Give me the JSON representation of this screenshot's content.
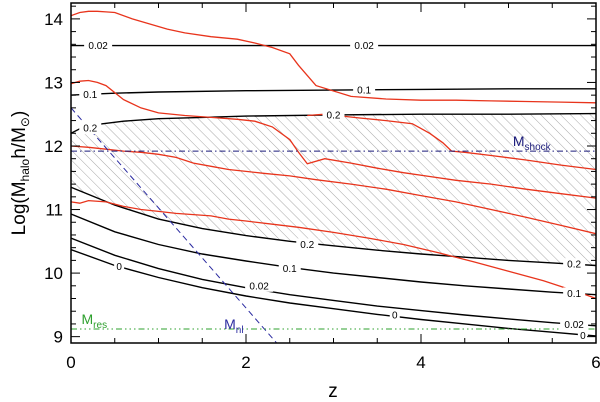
{
  "chart_data": {
    "type": "line",
    "x_axis": {
      "label": "z",
      "range": [
        0,
        6
      ],
      "ticks": [
        0,
        2,
        4,
        6
      ]
    },
    "y_axis": {
      "label": "Log(M_halo h/M_⊙)",
      "label_parts": {
        "prefix": "Log(M",
        "sub1": "halo",
        "mid": "h/M",
        "sub2": "⊙",
        "suffix": ")"
      },
      "range": [
        8.9,
        14.25
      ],
      "ticks": [
        9,
        10,
        11,
        12,
        13,
        14
      ]
    },
    "colors": {
      "contour": "#000000",
      "halo_tracks": "#e8341c",
      "shock": "#1a1a7a",
      "nonlinear": "#2a2aa0",
      "resolution": "#2ea02e",
      "hatch": "#a8a8a8"
    },
    "black_contours": [
      {
        "level": "0.02",
        "label": "0.02",
        "x": [
          0,
          6
        ],
        "y": [
          13.58,
          13.58
        ],
        "label_at": [
          [
            0.31,
            13.58
          ],
          [
            3.35,
            13.58
          ]
        ]
      },
      {
        "level": "0.1",
        "label": "0.1",
        "x": [
          0,
          0.5,
          1,
          2,
          3,
          4,
          5,
          6
        ],
        "y": [
          12.8,
          12.83,
          12.85,
          12.87,
          12.88,
          12.89,
          12.9,
          12.9
        ],
        "label_at": [
          [
            0.22,
            12.81
          ],
          [
            3.35,
            12.88
          ]
        ]
      },
      {
        "level": "0.2",
        "label": "0.2",
        "x": [
          0,
          0.1,
          0.3,
          0.6,
          1,
          1.5,
          2,
          3,
          4,
          5,
          6
        ],
        "y": [
          12.2,
          12.27,
          12.34,
          12.39,
          12.43,
          12.45,
          12.47,
          12.49,
          12.5,
          12.5,
          12.51
        ],
        "label_at": [
          [
            0.22,
            12.28
          ],
          [
            3.0,
            12.49
          ]
        ]
      },
      {
        "level": "0.2",
        "label": "0.2",
        "x": [
          0,
          0.5,
          1,
          1.5,
          2,
          2.5,
          3,
          3.5,
          4,
          4.5,
          5,
          5.5,
          6
        ],
        "y": [
          11.35,
          11.07,
          10.85,
          10.7,
          10.59,
          10.5,
          10.43,
          10.36,
          10.3,
          10.25,
          10.2,
          10.16,
          10.12
        ],
        "label_at": [
          [
            2.7,
            10.45
          ],
          [
            5.75,
            10.14
          ]
        ]
      },
      {
        "level": "0.1",
        "label": "0.1",
        "x": [
          0,
          0.5,
          1,
          1.5,
          2,
          2.5,
          3,
          3.5,
          4,
          4.5,
          5,
          5.5,
          6
        ],
        "y": [
          10.93,
          10.65,
          10.45,
          10.3,
          10.19,
          10.09,
          10.0,
          9.93,
          9.86,
          9.8,
          9.75,
          9.7,
          9.66
        ],
        "label_at": [
          [
            2.5,
            10.07
          ],
          [
            5.75,
            9.68
          ]
        ]
      },
      {
        "level": "0.02",
        "label": "0.02",
        "x": [
          0,
          0.5,
          1,
          1.5,
          2,
          2.5,
          3,
          3.5,
          4,
          4.5,
          5,
          5.5,
          6
        ],
        "y": [
          10.55,
          10.28,
          10.07,
          9.9,
          9.77,
          9.66,
          9.57,
          9.48,
          9.41,
          9.34,
          9.28,
          9.22,
          9.17
        ],
        "label_at": [
          [
            2.15,
            9.8
          ],
          [
            5.75,
            9.19
          ]
        ]
      },
      {
        "level": "0",
        "label": "0",
        "x": [
          0,
          0.5,
          1,
          1.5,
          2,
          2.5,
          3,
          3.5,
          4,
          4.5,
          5,
          5.5,
          6
        ],
        "y": [
          10.37,
          10.12,
          9.93,
          9.77,
          9.64,
          9.53,
          9.44,
          9.35,
          9.27,
          9.2,
          9.13,
          9.07,
          9.01
        ],
        "label_at": [
          [
            0.55,
            10.1
          ],
          [
            3.7,
            9.34
          ],
          [
            5.85,
            9.02
          ]
        ]
      }
    ],
    "red_tracks": [
      {
        "x": [
          0,
          0.1,
          0.2,
          0.3,
          0.4,
          0.5,
          0.7,
          0.9,
          1.1,
          1.3,
          1.6,
          1.9,
          2.1,
          2.3,
          2.5,
          2.6,
          2.8,
          3.2,
          3.6,
          4.0,
          4.4,
          4.8,
          5.2,
          5.6,
          6.0
        ],
        "y": [
          14.05,
          14.1,
          14.12,
          14.12,
          14.11,
          14.1,
          14.0,
          13.92,
          13.84,
          13.78,
          13.72,
          13.68,
          13.62,
          13.55,
          13.45,
          13.27,
          12.95,
          12.78,
          12.74,
          12.72,
          12.72,
          12.71,
          12.7,
          12.69,
          12.68
        ]
      },
      {
        "x": [
          0,
          0.1,
          0.2,
          0.3,
          0.4,
          0.6,
          0.8,
          1.0,
          1.3,
          1.6,
          1.9,
          2.1,
          2.3,
          2.5,
          2.6,
          2.7,
          2.9,
          3.2,
          3.5,
          3.8,
          4.1,
          4.4,
          4.8,
          5.2,
          5.6,
          6.0
        ],
        "y": [
          12.98,
          13.02,
          13.03,
          13.0,
          12.95,
          12.73,
          12.6,
          12.52,
          12.48,
          12.45,
          12.42,
          12.39,
          12.3,
          12.1,
          11.9,
          11.72,
          11.8,
          11.73,
          11.65,
          11.58,
          11.52,
          11.46,
          11.4,
          11.32,
          11.25,
          11.18
        ]
      },
      {
        "x": [
          2.7,
          2.9,
          3.1,
          3.3,
          3.6,
          3.9,
          4.1,
          4.25,
          4.35,
          4.5,
          4.8,
          5.2,
          5.6,
          6.0
        ],
        "y": [
          12.48,
          12.5,
          12.47,
          12.44,
          12.4,
          12.35,
          12.2,
          12.05,
          11.92,
          11.9,
          11.85,
          11.78,
          11.7,
          11.63
        ]
      },
      {
        "x": [
          0,
          0.2,
          0.4,
          0.6,
          0.8,
          1.0,
          1.2,
          1.4,
          1.6,
          1.8,
          2.0,
          2.2,
          2.5,
          2.8,
          3.2,
          3.6,
          4.0,
          4.4,
          4.8,
          5.2,
          5.6,
          6.0
        ],
        "y": [
          12.0,
          11.98,
          11.95,
          11.92,
          11.9,
          11.87,
          11.82,
          11.73,
          11.68,
          11.63,
          11.6,
          11.57,
          11.53,
          11.47,
          11.4,
          11.32,
          11.22,
          11.12,
          11.0,
          10.88,
          10.75,
          10.62
        ]
      },
      {
        "x": [
          0,
          0.1,
          0.2,
          0.4,
          0.6,
          0.8,
          1.0,
          1.2,
          1.4,
          1.6,
          1.8,
          2.0,
          2.3,
          2.6,
          3.0,
          3.4,
          3.8,
          4.2,
          4.6,
          5.0,
          5.4,
          5.8,
          6.0
        ],
        "y": [
          11.12,
          11.1,
          11.14,
          11.12,
          11.05,
          11.0,
          10.97,
          10.94,
          10.92,
          10.9,
          10.85,
          10.82,
          10.77,
          10.72,
          10.64,
          10.55,
          10.45,
          10.32,
          10.18,
          10.03,
          9.88,
          9.7,
          9.6
        ]
      }
    ],
    "hatched_band": {
      "upper": {
        "x": [
          0,
          0.1,
          0.3,
          0.6,
          1,
          1.5,
          2,
          3,
          4,
          5,
          6
        ],
        "y": [
          12.2,
          12.27,
          12.34,
          12.39,
          12.43,
          12.45,
          12.47,
          12.49,
          12.5,
          12.5,
          12.51
        ]
      },
      "lower": {
        "x": [
          0,
          0.5,
          1,
          1.5,
          2,
          2.5,
          3,
          3.5,
          4,
          4.5,
          5,
          5.5,
          6
        ],
        "y": [
          11.35,
          11.07,
          10.85,
          10.7,
          10.59,
          10.5,
          10.43,
          10.36,
          10.3,
          10.25,
          10.2,
          10.16,
          10.12
        ]
      }
    },
    "m_shock": {
      "y": 11.92,
      "label": "M",
      "sub": "shock",
      "label_at": [
        5.05,
        12.0
      ]
    },
    "m_nl": {
      "x": [
        0,
        2.35
      ],
      "y": [
        12.6,
        8.9
      ],
      "label": "M",
      "sub": "nl",
      "label_at": [
        1.75,
        9.12
      ]
    },
    "m_res": {
      "y": 9.12,
      "label": "M",
      "sub": "res",
      "label_at": [
        0.12,
        9.2
      ]
    }
  }
}
